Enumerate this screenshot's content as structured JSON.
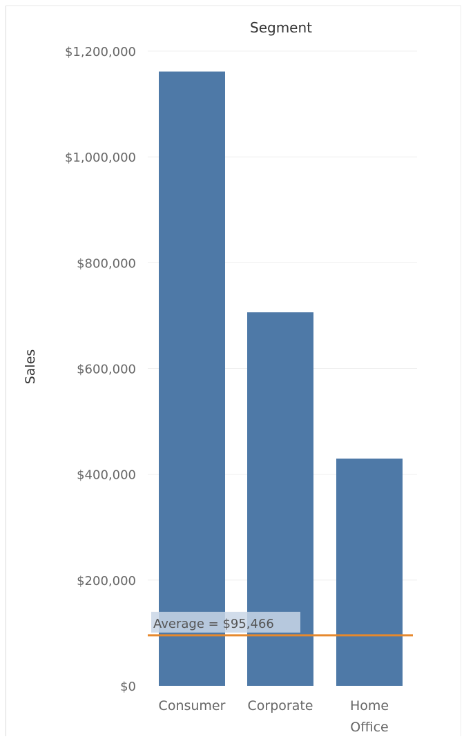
{
  "chart_data": {
    "type": "bar",
    "title": "Segment",
    "xlabel": "",
    "ylabel": "Sales",
    "categories": [
      "Consumer",
      "Corporate",
      "Home Office"
    ],
    "category_label_lines": [
      [
        "Consumer"
      ],
      [
        "Corporate"
      ],
      [
        "Home",
        "Office"
      ]
    ],
    "values": [
      1161401,
      706146,
      429653
    ],
    "ylim": [
      0,
      1200000
    ],
    "yticks": [
      0,
      200000,
      400000,
      600000,
      800000,
      1000000,
      1200000
    ],
    "ytick_labels": [
      "$0",
      "$200,000",
      "$400,000",
      "$600,000",
      "$800,000",
      "$1,000,000",
      "$1,200,000"
    ],
    "grid": true,
    "legend": "none",
    "bar_color": "#4e79a7",
    "reference_line": {
      "label": "Average = $95,466",
      "value": 95466,
      "color": "#e6892d",
      "label_bg": "#c9d6e6"
    }
  }
}
